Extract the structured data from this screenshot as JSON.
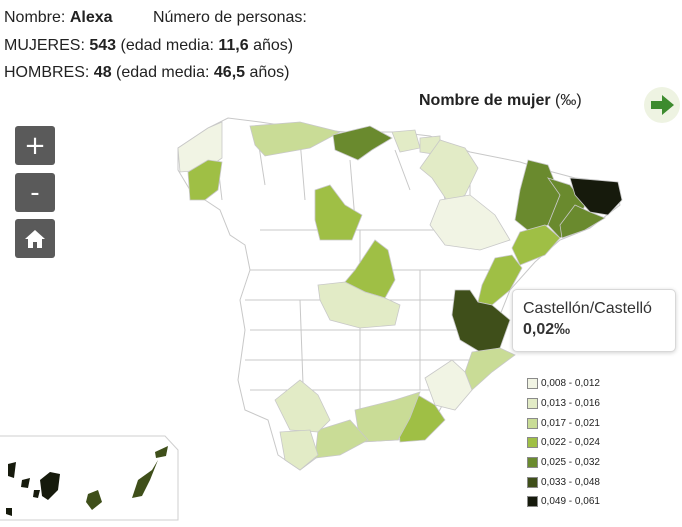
{
  "info": {
    "name_label": "Nombre:",
    "name_value": "Alexa",
    "persons_label": "Número de personas:",
    "women_label": "MUJERES:",
    "women_count": "543",
    "women_age_prefix": "(edad media:",
    "women_age": "11,6",
    "women_age_suffix": "años)",
    "men_label": "HOMBRES:",
    "men_count": "48",
    "men_age_prefix": "(edad media:",
    "men_age": "46,5",
    "men_age_suffix": "años)"
  },
  "map": {
    "title_bold": "Nombre de mujer",
    "title_unit": "(‰)",
    "controls": {
      "zoom_in": "+",
      "zoom_out": "-",
      "home_icon": "home-icon",
      "next_icon": "arrow-right-icon"
    },
    "tooltip": {
      "name": "Castellón/Castelló",
      "value": "0,02‰"
    },
    "legend": [
      {
        "label": "0,008 - 0,012",
        "color": "#f1f4e4"
      },
      {
        "label": "0,013 - 0,016",
        "color": "#e2ebc6"
      },
      {
        "label": "0,017 - 0,021",
        "color": "#c9dc96"
      },
      {
        "label": "0,022 - 0,024",
        "color": "#9fbf45"
      },
      {
        "label": "0,025 - 0,032",
        "color": "#6a8a2e"
      },
      {
        "label": "0,033 - 0,048",
        "color": "#3f4f1a"
      },
      {
        "label": "0,049 - 0,061",
        "color": "#161a0c"
      }
    ],
    "colors": {
      "no_data": "#ffffff",
      "border": "#c8c8c8",
      "accent": "#3d8b2e"
    }
  }
}
